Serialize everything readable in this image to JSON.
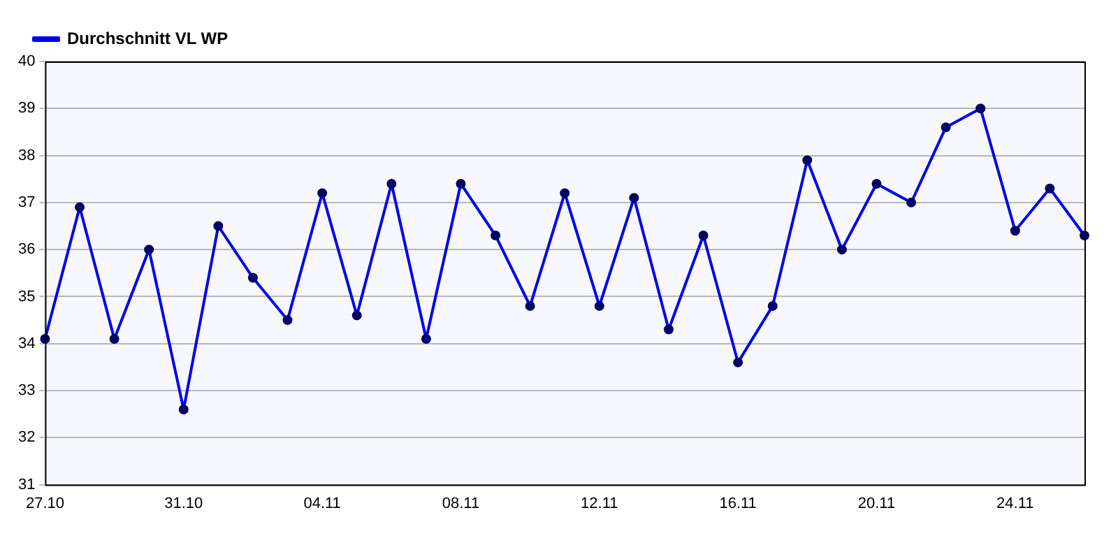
{
  "chart_data": {
    "type": "line",
    "categories": [
      "27.10",
      null,
      null,
      null,
      "31.10",
      null,
      null,
      null,
      "04.11",
      null,
      null,
      null,
      "08.11",
      null,
      null,
      null,
      "12.11",
      null,
      null,
      null,
      "16.11",
      null,
      null,
      null,
      "20.11",
      null,
      null,
      null,
      "24.11",
      null,
      null
    ],
    "series": [
      {
        "name": "Durchschnitt VL WP",
        "color": "#0000ee",
        "values": [
          34.1,
          36.9,
          34.1,
          36.0,
          32.6,
          36.5,
          35.4,
          34.5,
          37.2,
          34.6,
          37.4,
          34.1,
          37.4,
          36.3,
          34.8,
          37.2,
          34.8,
          37.1,
          34.3,
          36.3,
          33.6,
          34.8,
          37.9,
          36.0,
          37.4,
          37.0,
          38.6,
          39.0,
          36.4,
          37.3,
          36.3
        ]
      }
    ],
    "ylim": [
      31,
      40
    ],
    "yticks": [
      31,
      32,
      33,
      34,
      35,
      36,
      37,
      38,
      39,
      40
    ],
    "grid": "y",
    "legend": "top left",
    "marker": "circle",
    "line_style": "solid"
  }
}
